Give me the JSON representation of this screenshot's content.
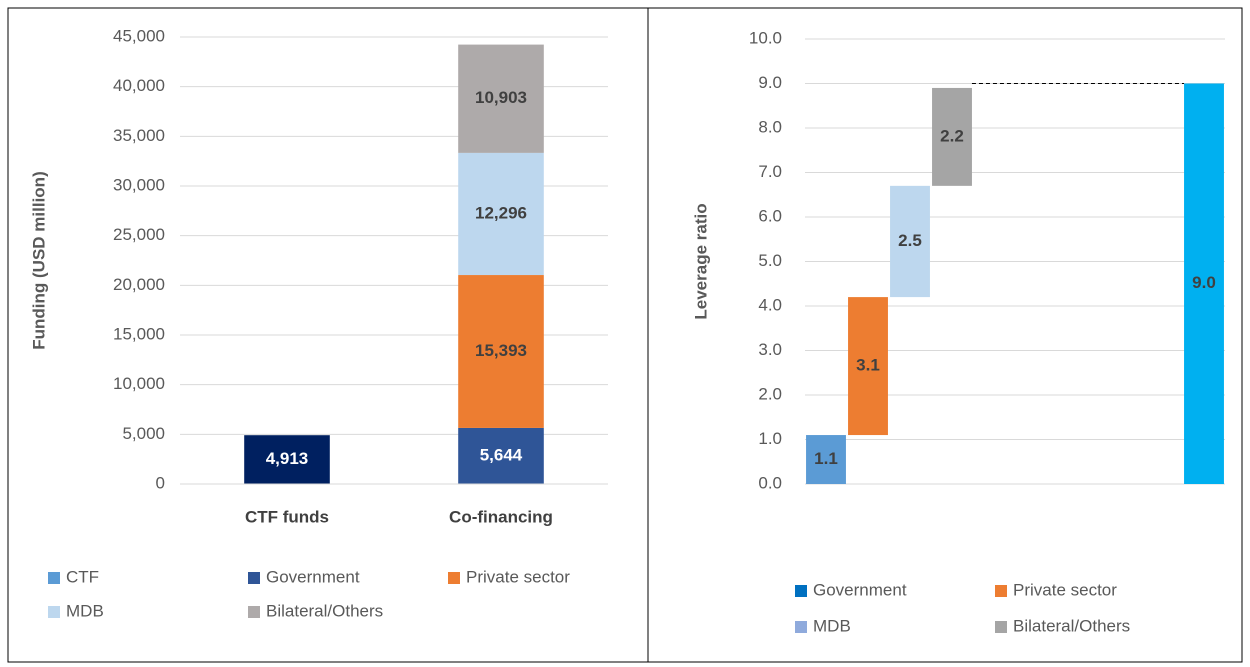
{
  "chart_data": [
    {
      "type": "stacked_bar",
      "y_label": "Funding (USD million)",
      "categories": [
        "CTF funds",
        "Co-financing"
      ],
      "series": [
        {
          "name": "CTF",
          "color": "#5b9bd5",
          "bar_color": "#002060",
          "values": [
            4913,
            null
          ],
          "value_labels": [
            "4,913",
            null
          ]
        },
        {
          "name": "Government",
          "color": "#2f5597",
          "values": [
            null,
            5644
          ],
          "value_labels": [
            null,
            "5,644"
          ]
        },
        {
          "name": "Private sector",
          "color": "#ed7d31",
          "values": [
            null,
            15393
          ],
          "value_labels": [
            null,
            "15,393"
          ]
        },
        {
          "name": "MDB",
          "color": "#bdd7ee",
          "values": [
            null,
            12296
          ],
          "value_labels": [
            null,
            "12,296"
          ]
        },
        {
          "name": "Bilateral/Others",
          "color": "#aeaaaa",
          "values": [
            null,
            10903
          ],
          "value_labels": [
            null,
            "10,903"
          ]
        }
      ],
      "ylim": [
        0,
        45000
      ],
      "yticks": [
        0,
        {
          "value": 5000,
          "label": "5,000"
        },
        {
          "value": 10000,
          "label": "10,000"
        },
        {
          "value": 15000,
          "label": "15,000"
        },
        {
          "value": 20000,
          "label": "20,000"
        },
        {
          "value": 25000,
          "label": "25,000"
        },
        {
          "value": 30000,
          "label": "30,000"
        },
        {
          "value": 35000,
          "label": "35,000"
        },
        {
          "value": 40000,
          "label": "40,000"
        },
        {
          "value": 45000,
          "label": "45,000"
        }
      ],
      "grid": true
    },
    {
      "type": "waterfall",
      "y_label": "Leverage ratio",
      "categories": [
        null,
        null,
        null,
        null,
        null,
        null,
        null,
        null,
        null,
        null
      ],
      "values": [
        1.1,
        3.1,
        2.5,
        2.2,
        null,
        null,
        null,
        null,
        null,
        9.0
      ],
      "value_labels": [
        "1.1",
        "3.1",
        "2.5",
        "2.2",
        null,
        null,
        null,
        null,
        null,
        "9.0"
      ],
      "measure": [
        "relative",
        "relative",
        "relative",
        "relative",
        null,
        null,
        null,
        null,
        null,
        "total"
      ],
      "colors": [
        "#5b9bd5",
        "#ed7d31",
        "#bdd7ee",
        "#a5a5a5",
        null,
        null,
        null,
        null,
        null,
        "#00b0f0"
      ],
      "legend": [
        {
          "name": "Government",
          "color": "#0070c0"
        },
        {
          "name": "Private sector",
          "color": "#ed7d31"
        },
        {
          "name": "MDB",
          "color": "#8faadc"
        },
        {
          "name": "Bilateral/Others",
          "color": "#a5a5a5"
        }
      ],
      "ylim": [
        0,
        10
      ],
      "yticks": [
        {
          "value": 0,
          "label": "0.0"
        },
        {
          "value": 1,
          "label": "1.0"
        },
        {
          "value": 2,
          "label": "2.0"
        },
        {
          "value": 3,
          "label": "3.0"
        },
        {
          "value": 4,
          "label": "4.0"
        },
        {
          "value": 5,
          "label": "5.0"
        },
        {
          "value": 6,
          "label": "6.0"
        },
        {
          "value": 7,
          "label": "7.0"
        },
        {
          "value": 8,
          "label": "8.0"
        },
        {
          "value": 9,
          "label": "9.0"
        },
        {
          "value": 10,
          "label": "10.0"
        }
      ],
      "grid": true
    }
  ]
}
